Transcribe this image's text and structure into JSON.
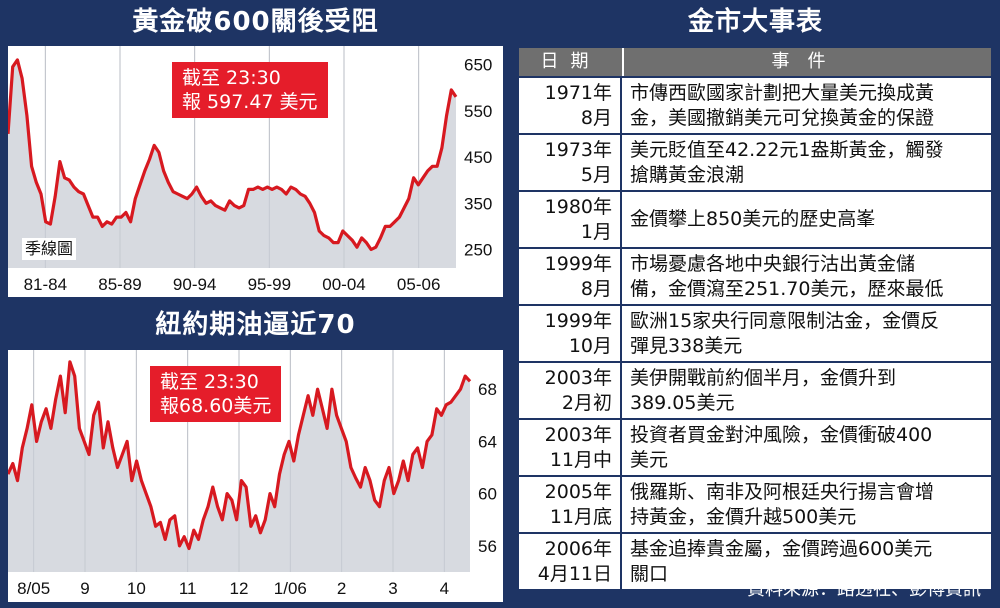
{
  "gold_chart": {
    "title": "黃金破600關後受阻",
    "annotation": [
      "截至 23:30",
      "報 597.47 美元"
    ],
    "sub_label": "季線圖"
  },
  "oil_chart": {
    "title": "紐約期油逼近70",
    "annotation": [
      "截至 23:30",
      "報68.60美元"
    ]
  },
  "table": {
    "title": "金市大事表",
    "header": {
      "date": "日期",
      "event": "事件"
    },
    "rows": [
      {
        "date": [
          "1971年",
          "8月"
        ],
        "event": [
          "市傳西歐國家計劃把大量美元換成黃",
          "金，美國撤銷美元可兌換黃金的保證"
        ]
      },
      {
        "date": [
          "1973年",
          "5月"
        ],
        "event": [
          "美元貶值至42.22元1盎斯黃金，觸發",
          "搶購黃金浪潮"
        ]
      },
      {
        "date": [
          "1980年",
          "1月"
        ],
        "event": [
          "金價攀上850美元的歷史高峯"
        ]
      },
      {
        "date": [
          "1999年",
          "8月"
        ],
        "event": [
          "市場憂慮各地中央銀行沽出黃金儲",
          "備，金價瀉至251.70美元，歷來最低"
        ]
      },
      {
        "date": [
          "1999年",
          "10月"
        ],
        "event": [
          "歐洲15家央行同意限制沽金，金價反",
          "彈見338美元"
        ]
      },
      {
        "date": [
          "2003年",
          "2月初"
        ],
        "event": [
          "美伊開戰前約個半月，金價升到",
          "389.05美元"
        ]
      },
      {
        "date": [
          "2003年",
          "11月中"
        ],
        "event": [
          "投資者買金對沖風險，金價衝破400",
          "美元"
        ]
      },
      {
        "date": [
          "2005年",
          "11月底"
        ],
        "event": [
          "俄羅斯、南非及阿根廷央行揚言會增",
          "持黃金，金價升越500美元"
        ]
      },
      {
        "date": [
          "2006年",
          "4月11日"
        ],
        "event": [
          "基金追捧貴金屬，金價跨過600美元",
          "關口"
        ]
      }
    ],
    "source": "資料來源：路透社、彭博資訊"
  },
  "chart_data": [
    {
      "type": "line",
      "title": "黃金破600關後受阻",
      "xlabel": "",
      "ylabel": "",
      "x_tick_labels": [
        "81-84",
        "85-89",
        "90-94",
        "95-99",
        "00-04",
        "05-06"
      ],
      "y_ticks": [
        250,
        350,
        450,
        550,
        650
      ],
      "ylim": [
        210,
        690
      ],
      "grid": "vertical",
      "line_color": "#d71920",
      "series": [
        {
          "values": [
            500,
            645,
            660,
            620,
            540,
            430,
            395,
            370,
            310,
            305,
            365,
            440,
            405,
            400,
            385,
            375,
            370,
            345,
            320,
            320,
            300,
            310,
            305,
            320,
            320,
            330,
            310,
            360,
            390,
            420,
            445,
            475,
            460,
            420,
            395,
            375,
            370,
            365,
            360,
            370,
            385,
            365,
            350,
            355,
            345,
            340,
            335,
            355,
            345,
            340,
            345,
            380,
            380,
            385,
            380,
            385,
            380,
            385,
            380,
            370,
            385,
            380,
            370,
            365,
            350,
            330,
            290,
            280,
            275,
            265,
            265,
            290,
            280,
            270,
            255,
            275,
            265,
            250,
            255,
            275,
            300,
            300,
            310,
            320,
            340,
            360,
            405,
            390,
            405,
            420,
            430,
            430,
            470,
            540,
            595,
            580
          ]
        }
      ]
    },
    {
      "type": "line",
      "title": "紐約期油逼近70",
      "xlabel": "",
      "ylabel": "",
      "x_tick_labels": [
        "8/05",
        "9",
        "10",
        "11",
        "12",
        "1/06",
        "2",
        "3",
        "4"
      ],
      "y_ticks": [
        56,
        60,
        64,
        68
      ],
      "ylim": [
        54,
        71
      ],
      "grid": "vertical",
      "line_color": "#d71920",
      "series": [
        {
          "values": [
            61.5,
            62.3,
            61,
            63.5,
            65,
            66.8,
            64,
            65.5,
            66.5,
            65,
            67.2,
            69,
            66.2,
            70.1,
            69,
            65,
            64,
            63,
            66,
            67,
            63.5,
            65.5,
            63.5,
            62,
            63,
            64,
            61,
            62.5,
            61,
            60,
            59,
            57.5,
            57.8,
            56.5,
            58,
            58.3,
            56,
            56.7,
            55.8,
            57.2,
            56.5,
            58,
            59,
            60.5,
            59,
            58,
            60,
            59.5,
            58,
            61,
            60.5,
            57.5,
            58.3,
            57,
            58,
            60,
            59,
            61.5,
            63,
            64,
            62.5,
            64.5,
            66,
            67.5,
            66,
            68,
            66.5,
            65,
            68,
            66,
            65,
            64,
            62,
            61.2,
            60.5,
            62,
            61,
            59.5,
            59,
            61,
            62,
            60,
            61,
            62.5,
            61,
            63,
            63.5,
            62,
            64,
            64.5,
            66.5,
            66,
            66.8,
            67,
            67.5,
            68,
            69,
            68.6
          ]
        }
      ]
    }
  ]
}
